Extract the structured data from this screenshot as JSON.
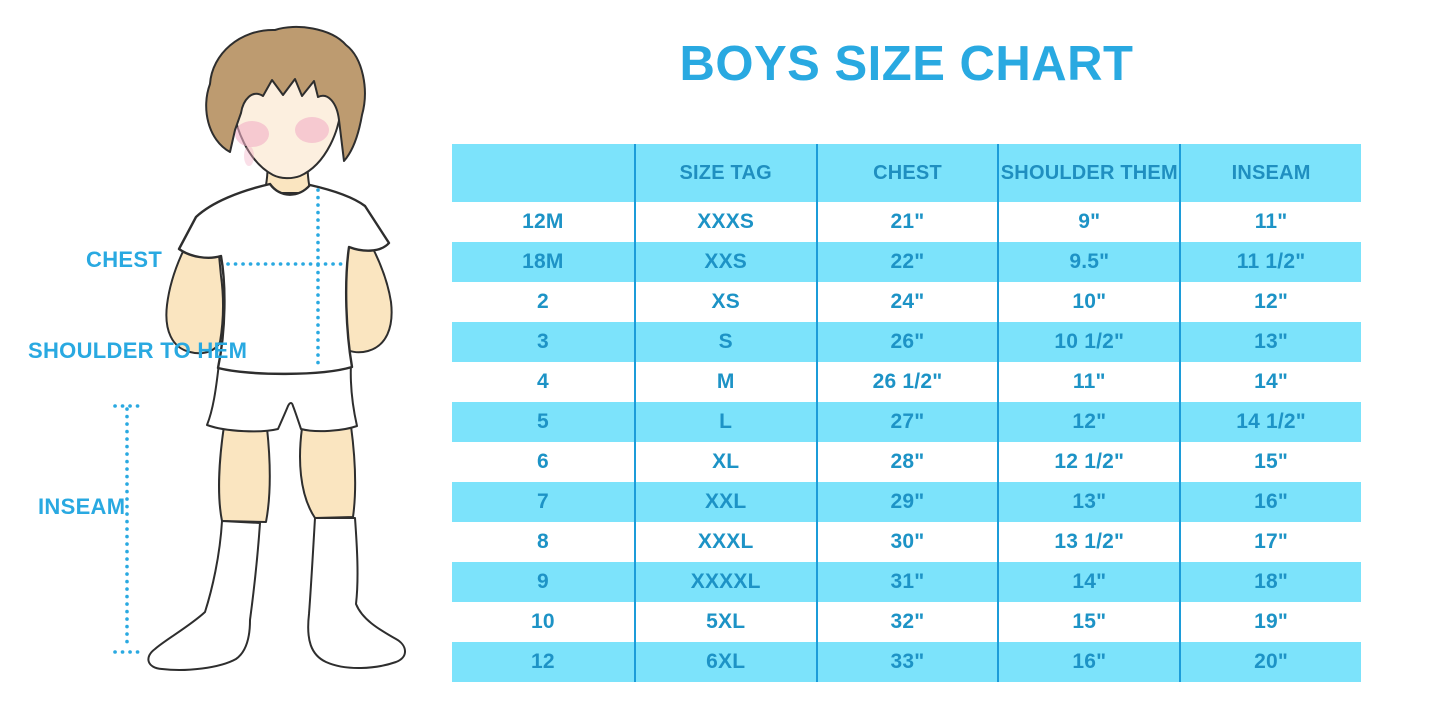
{
  "title": "BOYS SIZE CHART",
  "colors": {
    "accent_blue": "#29A9E1",
    "table_text_blue": "#1D93C6",
    "row_stripe_blue": "#7CE3FB",
    "divider_blue": "#1C9CD9",
    "skin": "#FAE5C0",
    "face": "#FCEFDF",
    "hair": "#BD9B70",
    "blush": "#F2AFC6",
    "outline": "#2e2e2e"
  },
  "figure": {
    "labels": {
      "chest": "CHEST",
      "shoulder_to_hem": "SHOULDER TO HEM",
      "inseam": "INSEAM"
    },
    "illustration": "boy in white t-shirt, shorts and knee socks with dotted measurement guides"
  },
  "table": {
    "columns": [
      "",
      "SIZE TAG",
      "CHEST",
      "SHOULDER THEM",
      "INSEAM"
    ],
    "rows": [
      [
        "12M",
        "XXXS",
        "21\"",
        "9\"",
        "11\""
      ],
      [
        "18M",
        "XXS",
        "22\"",
        "9.5\"",
        "11 1/2\""
      ],
      [
        "2",
        "XS",
        "24\"",
        "10\"",
        "12\""
      ],
      [
        "3",
        "S",
        "26\"",
        "10 1/2\"",
        "13\""
      ],
      [
        "4",
        "M",
        "26 1/2\"",
        "11\"",
        "14\""
      ],
      [
        "5",
        "L",
        "27\"",
        "12\"",
        "14 1/2\""
      ],
      [
        "6",
        "XL",
        "28\"",
        "12 1/2\"",
        "15\""
      ],
      [
        "7",
        "XXL",
        "29\"",
        "13\"",
        "16\""
      ],
      [
        "8",
        "XXXL",
        "30\"",
        "13 1/2\"",
        "17\""
      ],
      [
        "9",
        "XXXXL",
        "31\"",
        "14\"",
        "18\""
      ],
      [
        "10",
        "5XL",
        "32\"",
        "15\"",
        "19\""
      ],
      [
        "12",
        "6XL",
        "33\"",
        "16\"",
        "20\""
      ]
    ]
  }
}
